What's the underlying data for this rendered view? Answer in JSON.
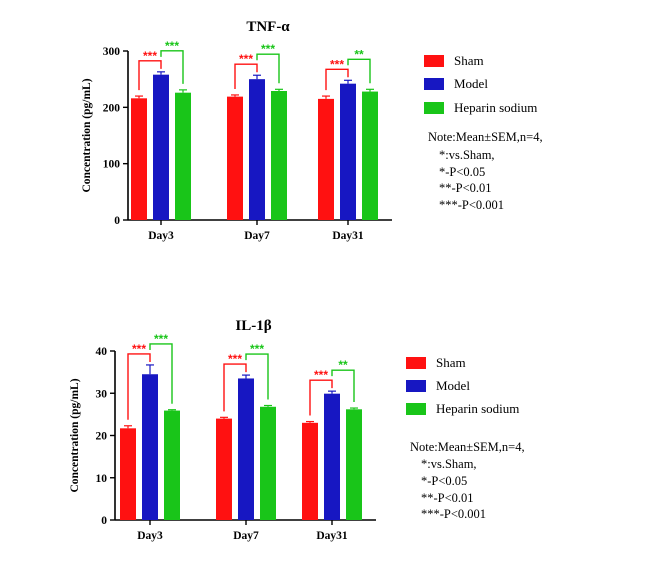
{
  "colors": {
    "sham": "#ff1111",
    "model": "#1717c2",
    "heparin": "#19c519",
    "axis": "#000000",
    "sig_red": "#ff1111",
    "sig_green": "#19c519"
  },
  "legend": {
    "items": [
      {
        "label": "Sham",
        "color_key": "sham"
      },
      {
        "label": "Model",
        "color_key": "model"
      },
      {
        "label": "Heparin sodium",
        "color_key": "heparin"
      }
    ]
  },
  "note_lines": [
    "Note:Mean±SEM,n=4,",
    "*:vs.Sham,",
    "*-P<0.05",
    "**-P<0.01",
    "***-P<0.001"
  ],
  "chart_data": [
    {
      "type": "bar",
      "title": "TNF-α",
      "ylabel": "Concentration (pg/mL)",
      "xlabel": "",
      "categories": [
        "Day3",
        "Day7",
        "Day31"
      ],
      "ylim": [
        0,
        300
      ],
      "yticks": [
        0,
        100,
        200,
        300
      ],
      "series": [
        {
          "name": "Sham",
          "values": [
            216,
            219,
            215
          ],
          "errors": [
            4,
            3,
            5
          ]
        },
        {
          "name": "Model",
          "values": [
            258,
            250,
            242
          ],
          "errors": [
            5,
            7,
            6
          ]
        },
        {
          "name": "Heparin sodium",
          "values": [
            226,
            229,
            228
          ],
          "errors": [
            5,
            3,
            4
          ]
        }
      ],
      "significance": [
        {
          "category": 0,
          "red": "***",
          "green": "***"
        },
        {
          "category": 1,
          "red": "***",
          "green": "***"
        },
        {
          "category": 2,
          "red": "***",
          "green": "**"
        }
      ],
      "grid": false,
      "legend_position": "right"
    },
    {
      "type": "bar",
      "title": "IL-1β",
      "ylabel": "Concentration (pg/mL)",
      "xlabel": "",
      "categories": [
        "Day3",
        "Day7",
        "Day31"
      ],
      "ylim": [
        0,
        40
      ],
      "yticks": [
        0,
        10,
        20,
        30,
        40
      ],
      "series": [
        {
          "name": "Sham",
          "values": [
            21.7,
            24.0,
            23.0
          ],
          "errors": [
            0.6,
            0.3,
            0.3
          ]
        },
        {
          "name": "Model",
          "values": [
            34.5,
            33.5,
            29.9
          ],
          "errors": [
            2.2,
            0.8,
            0.6
          ]
        },
        {
          "name": "Heparin sodium",
          "values": [
            25.9,
            26.8,
            26.2
          ],
          "errors": [
            0.2,
            0.3,
            0.3
          ]
        }
      ],
      "significance": [
        {
          "category": 0,
          "red": "***",
          "green": "***"
        },
        {
          "category": 1,
          "red": "***",
          "green": "***"
        },
        {
          "category": 2,
          "red": "***",
          "green": "**"
        }
      ],
      "grid": false,
      "legend_position": "right"
    }
  ]
}
